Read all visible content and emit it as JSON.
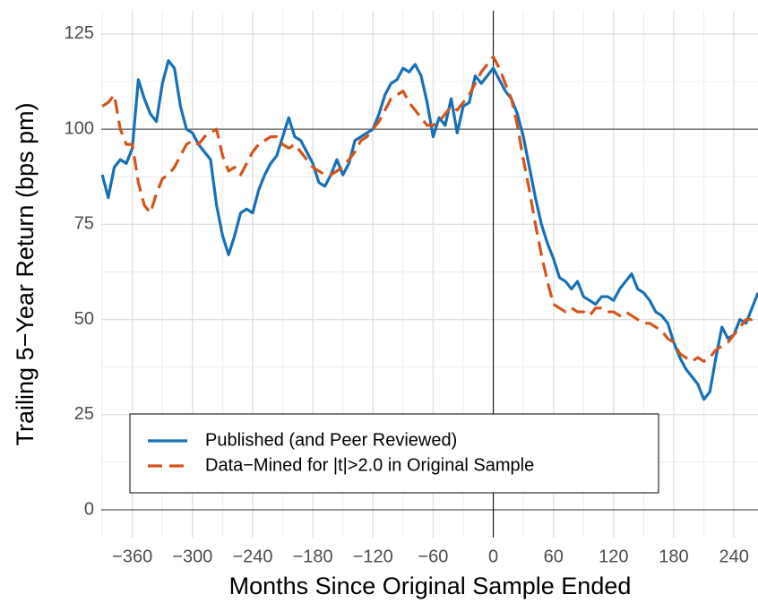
{
  "chart_data": {
    "type": "line",
    "x_label": "Months Since Original Sample Ended",
    "y_label": "Trailing 5−Year Return (bps pm)",
    "xlim": [
      -391,
      264
    ],
    "ylim": [
      -7.3,
      131.1
    ],
    "xticks": [
      {
        "value": -360,
        "label": "−360"
      },
      {
        "value": -300,
        "label": "−300"
      },
      {
        "value": -240,
        "label": "−240"
      },
      {
        "value": -180,
        "label": "−180"
      },
      {
        "value": -120,
        "label": "−120"
      },
      {
        "value": -60,
        "label": "−60"
      },
      0,
      60,
      120,
      180,
      240
    ],
    "yticks": [
      0,
      25,
      50,
      75,
      100,
      125
    ],
    "grid": true,
    "hlines": [
      0,
      100
    ],
    "vlines": [
      0
    ],
    "legend": "bottom-left",
    "x": [
      -390,
      -384,
      -378,
      -372,
      -366,
      -360,
      -354,
      -348,
      -342,
      -336,
      -330,
      -324,
      -318,
      -312,
      -306,
      -300,
      -294,
      -288,
      -282,
      -276,
      -270,
      -264,
      -258,
      -252,
      -246,
      -240,
      -234,
      -228,
      -222,
      -216,
      -210,
      -204,
      -198,
      -192,
      -186,
      -180,
      -174,
      -168,
      -162,
      -156,
      -150,
      -144,
      -138,
      -132,
      -126,
      -120,
      -114,
      -108,
      -102,
      -96,
      -90,
      -84,
      -78,
      -72,
      -66,
      -60,
      -54,
      -48,
      -42,
      -36,
      -30,
      -24,
      -18,
      -12,
      -6,
      0,
      6,
      12,
      18,
      24,
      30,
      36,
      42,
      48,
      54,
      60,
      66,
      72,
      78,
      84,
      90,
      96,
      102,
      108,
      114,
      120,
      126,
      132,
      138,
      144,
      150,
      156,
      162,
      168,
      174,
      180,
      186,
      192,
      198,
      204,
      210,
      216,
      222,
      228,
      234,
      240,
      246,
      252,
      258,
      264
    ],
    "series": [
      {
        "name": "Published (and Peer Reviewed)",
        "color": "#1670b8",
        "dash": "solid",
        "values": [
          88,
          82,
          90,
          92,
          91,
          95,
          113,
          108,
          104,
          102,
          112,
          118,
          116,
          106,
          100,
          99,
          96,
          94,
          92,
          80,
          72,
          67,
          72,
          78,
          79,
          78,
          84,
          88,
          91,
          93,
          98,
          103,
          98,
          97,
          94,
          91,
          86,
          85,
          88,
          92,
          88,
          91,
          97,
          98,
          99,
          100,
          104,
          109,
          112,
          113,
          116,
          115,
          117,
          114,
          107,
          98,
          103,
          101,
          108,
          99,
          106,
          107,
          114,
          112,
          114,
          116,
          113,
          110,
          108,
          104,
          98,
          90,
          82,
          75,
          70,
          66,
          61,
          60,
          58,
          60,
          56,
          55,
          54,
          56,
          56,
          55,
          58,
          60,
          62,
          58,
          57,
          55,
          52,
          51,
          49,
          44,
          40,
          37,
          35,
          33,
          29,
          31,
          40,
          48,
          45,
          46,
          50,
          49,
          53,
          57
        ]
      },
      {
        "name": "Data−Mined for |t|>2.0 in Original Sample",
        "color": "#d4541c",
        "dash": "dashed",
        "values": [
          106,
          107,
          109,
          100,
          96,
          96,
          86,
          80,
          78,
          83,
          87,
          88,
          90,
          93,
          96,
          97,
          96,
          98,
          99,
          100,
          93,
          89,
          90,
          88,
          91,
          94,
          96,
          97,
          98,
          98,
          96,
          95,
          96,
          94,
          92,
          90,
          89,
          88,
          88,
          89,
          90,
          92,
          94,
          97,
          98,
          100,
          102,
          105,
          108,
          109,
          110,
          107,
          105,
          103,
          101,
          101,
          102,
          104,
          106,
          105,
          107,
          109,
          112,
          115,
          117,
          119,
          116,
          112,
          108,
          101,
          92,
          84,
          75,
          67,
          60,
          54,
          53,
          52,
          53,
          52,
          52,
          51,
          53,
          53,
          52,
          52,
          51,
          52,
          51,
          50,
          49,
          49,
          48,
          47,
          45,
          44,
          41,
          40,
          39,
          40,
          39,
          40,
          42,
          43,
          44,
          46,
          48,
          50,
          50,
          51
        ]
      }
    ]
  }
}
